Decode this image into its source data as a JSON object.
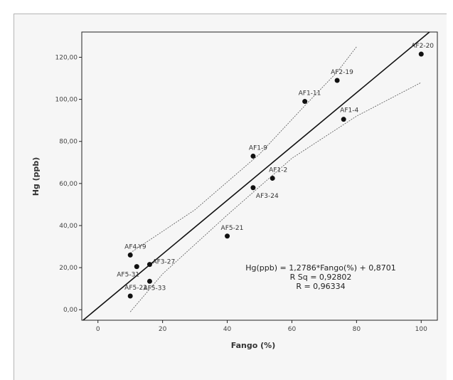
{
  "chart_data": {
    "type": "scatter",
    "xlabel": "Fango (%)",
    "ylabel": "Hg (ppb)",
    "xlim": [
      -5,
      105
    ],
    "ylim": [
      -5,
      132
    ],
    "x_ticks": [
      0,
      20,
      40,
      60,
      80,
      100
    ],
    "x_tick_labels": [
      "0",
      "20",
      "40",
      "60",
      "80",
      "100"
    ],
    "y_ticks": [
      0,
      20,
      40,
      60,
      80,
      100,
      120
    ],
    "y_tick_labels": [
      "0,00",
      "20,00",
      "40,00",
      "60,00",
      "80,00",
      "100,00",
      "120,00"
    ],
    "points": [
      {
        "label": "AF2-20",
        "x": 100,
        "y": 121.5
      },
      {
        "label": "AF2-19",
        "x": 74,
        "y": 109
      },
      {
        "label": "AF1-11",
        "x": 64,
        "y": 99
      },
      {
        "label": "AF1-4",
        "x": 76,
        "y": 90.5
      },
      {
        "label": "AF1-9",
        "x": 48,
        "y": 73
      },
      {
        "label": "AF1-2",
        "x": 54,
        "y": 62.5
      },
      {
        "label": "AF3-24",
        "x": 48,
        "y": 58
      },
      {
        "label": "AF5-21",
        "x": 40,
        "y": 35
      },
      {
        "label": "AF4-Y9",
        "x": 10,
        "y": 26
      },
      {
        "label": "AF3-27",
        "x": 16,
        "y": 21.5
      },
      {
        "label": "AF5-31",
        "x": 12,
        "y": 20.5
      },
      {
        "label": "AF5-33",
        "x": 16,
        "y": 13.5
      },
      {
        "label": "AF5-22",
        "x": 10,
        "y": 6.5
      }
    ],
    "regression": {
      "slope": 1.2786,
      "intercept": 0.8701
    },
    "upper_band": [
      [
        10,
        27
      ],
      [
        30,
        47.5
      ],
      [
        50,
        74
      ],
      [
        64,
        97
      ],
      [
        74,
        113
      ],
      [
        80,
        125
      ]
    ],
    "lower_band": [
      [
        10,
        -1
      ],
      [
        20,
        17
      ],
      [
        40,
        45
      ],
      [
        60,
        72
      ],
      [
        80,
        92
      ],
      [
        100,
        108
      ]
    ],
    "annotation": {
      "equation": "Hg(ppb) = 1,2786*Fango(%) + 0,8701",
      "rsq": "R Sq = 0,92802",
      "r": "R = 0,96334"
    },
    "grid": false,
    "legend": "none"
  }
}
